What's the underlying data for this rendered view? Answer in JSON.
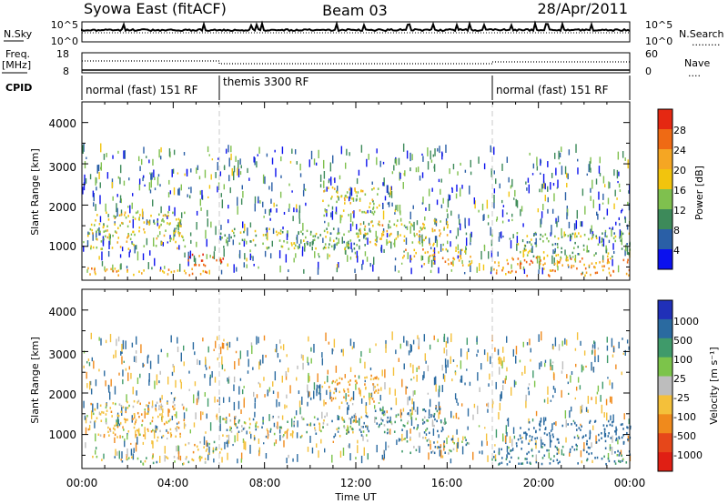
{
  "header": {
    "station": "Syowa East (fitACF)",
    "beam": "Beam 03",
    "date": "28/Apr/2011"
  },
  "top_panels": {
    "nsky_label": "N.Sky",
    "nsearch_label": "N.Search",
    "freq_label_1": "Freq.",
    "freq_label_2": "[MHz]",
    "nave_label": "Nave",
    "cpid_label": "CPID",
    "left_ticks_nsky": [
      "10^5",
      "10^0"
    ],
    "right_ticks_nsky": [
      "10^5",
      "10^0"
    ],
    "left_ticks_freq": [
      "18",
      "8"
    ],
    "right_ticks_nave": [
      "60",
      "0"
    ],
    "cpid_segments": [
      {
        "label": "normal (fast) 151 RF",
        "start": 0,
        "end": 6
      },
      {
        "label": "themis 3300 RF",
        "start": 6,
        "end": 18
      },
      {
        "label": "normal (fast) 151 RF",
        "start": 18,
        "end": 24
      }
    ]
  },
  "panels": {
    "power": {
      "ylabel": "Slant Range [km]",
      "yticks": [
        "1000",
        "2000",
        "3000",
        "4000"
      ],
      "cbar_title": "Power [dB]",
      "cbar_labels": [
        "4",
        "8",
        "12",
        "16",
        "20",
        "24",
        "28"
      ],
      "cbar_colors": [
        "#0b11ee",
        "#2a5fa6",
        "#3d8a5a",
        "#7fc04e",
        "#f2c40d",
        "#f5a623",
        "#ef6a14",
        "#e52812"
      ]
    },
    "velocity": {
      "ylabel": "Slant Range [km]",
      "yticks": [
        "1000",
        "2000",
        "3000",
        "4000"
      ],
      "cbar_title": "Velocity [m s⁻¹]",
      "cbar_labels": [
        "1000",
        "500",
        "100",
        "25",
        "-25",
        "-100",
        "-500",
        "-1000"
      ],
      "cbar_colors": [
        "#2030b8",
        "#2a6aa0",
        "#3f9a6a",
        "#7cc44a",
        "#bdbdbd",
        "#f4c03a",
        "#f08a1c",
        "#e6471a",
        "#e01f14"
      ]
    }
  },
  "xaxis": {
    "label": "Time UT",
    "ticks": [
      "00:00",
      "04:00",
      "08:00",
      "12:00",
      "16:00",
      "20:00",
      "00:00"
    ]
  },
  "chart_data": {
    "type": "heatmap",
    "title": "Syowa East (fitACF) Beam 03 28/Apr/2011",
    "xlabel": "Time UT",
    "ylabel": "Slant Range [km]",
    "xlim": [
      0,
      24
    ],
    "ylim": [
      180,
      4500
    ],
    "grid": false,
    "series": [
      {
        "name": "Power [dB]",
        "zlim": [
          0,
          30
        ]
      },
      {
        "name": "Velocity [m s⁻¹]",
        "zlim": [
          -1000,
          1000
        ]
      }
    ],
    "regions": [
      {
        "t": [
          0.2,
          5.5
        ],
        "r": [
          250,
          450
        ],
        "power": 20,
        "velocity": -80
      },
      {
        "t": [
          0.2,
          4.5
        ],
        "r": [
          900,
          1800
        ],
        "power": 16,
        "velocity": -200
      },
      {
        "t": [
          4.5,
          6.2
        ],
        "r": [
          500,
          800
        ],
        "power": 27,
        "velocity": -120
      },
      {
        "t": [
          6.0,
          12.5
        ],
        "r": [
          900,
          1400
        ],
        "power": 12,
        "velocity": 0
      },
      {
        "t": [
          10.5,
          13.0
        ],
        "r": [
          1700,
          2400
        ],
        "power": 16,
        "velocity": -300
      },
      {
        "t": [
          12.0,
          16.0
        ],
        "r": [
          1000,
          1600
        ],
        "power": 18,
        "velocity": 100
      },
      {
        "t": [
          14.0,
          17.0
        ],
        "r": [
          500,
          900
        ],
        "power": 20,
        "velocity": 50
      },
      {
        "t": [
          18.0,
          24.0
        ],
        "r": [
          250,
          700
        ],
        "power": 22,
        "velocity": 200
      },
      {
        "t": [
          19.0,
          24.0
        ],
        "r": [
          700,
          1300
        ],
        "power": 12,
        "velocity": 300
      }
    ]
  }
}
